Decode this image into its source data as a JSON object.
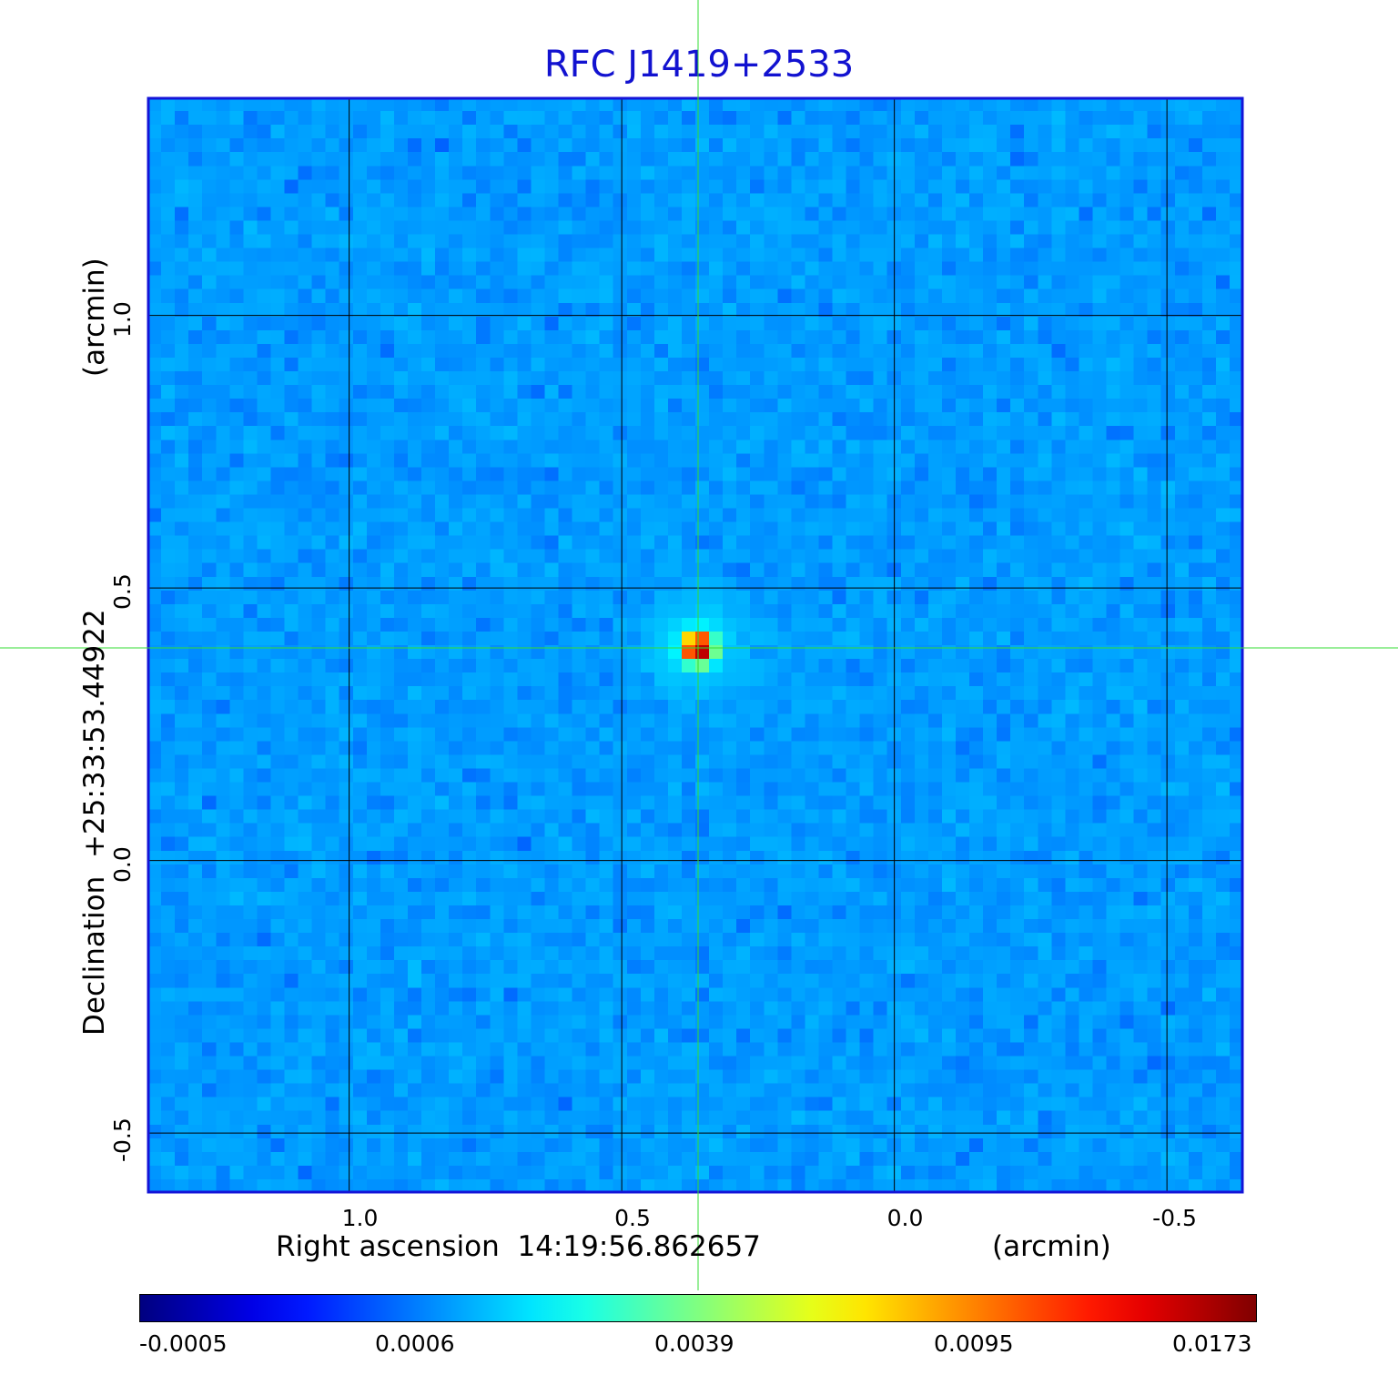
{
  "chart_data": {
    "type": "heatmap",
    "title": "RFC J1419+2533",
    "xlabel": "Right ascension  14:19:56.862657",
    "xunit": "(arcmin)",
    "ylabel": "Declination  +25:33:53.44922",
    "yunit": "(arcmin)",
    "xlim": [
      1.37,
      -0.64
    ],
    "ylim": [
      -0.61,
      1.4
    ],
    "x_ticks": [
      "1.0",
      "0.5",
      "0.0",
      "-0.5"
    ],
    "x_tick_values": [
      1.0,
      0.5,
      0.0,
      -0.5
    ],
    "y_ticks": [
      "1.0",
      "0.5",
      "0.0",
      "-0.5"
    ],
    "y_tick_values": [
      1.0,
      0.5,
      0.0,
      -0.5
    ],
    "grid": true,
    "source_peak": {
      "x": 0.36,
      "y": 0.39,
      "value": 0.0173
    },
    "crosshair": {
      "x": 0.36,
      "y": 0.39
    },
    "background_level": 0.0,
    "colorbar": {
      "colormap": "jet",
      "ticks": [
        "-0.0005",
        "0.0006",
        "0.0039",
        "0.0095",
        "0.0173"
      ],
      "min": -0.0005,
      "max": 0.0173
    },
    "colors": {
      "title": "#1212d0",
      "frame": "#1414d8",
      "grid": "#000000",
      "crosshair": "#33dd33"
    }
  }
}
